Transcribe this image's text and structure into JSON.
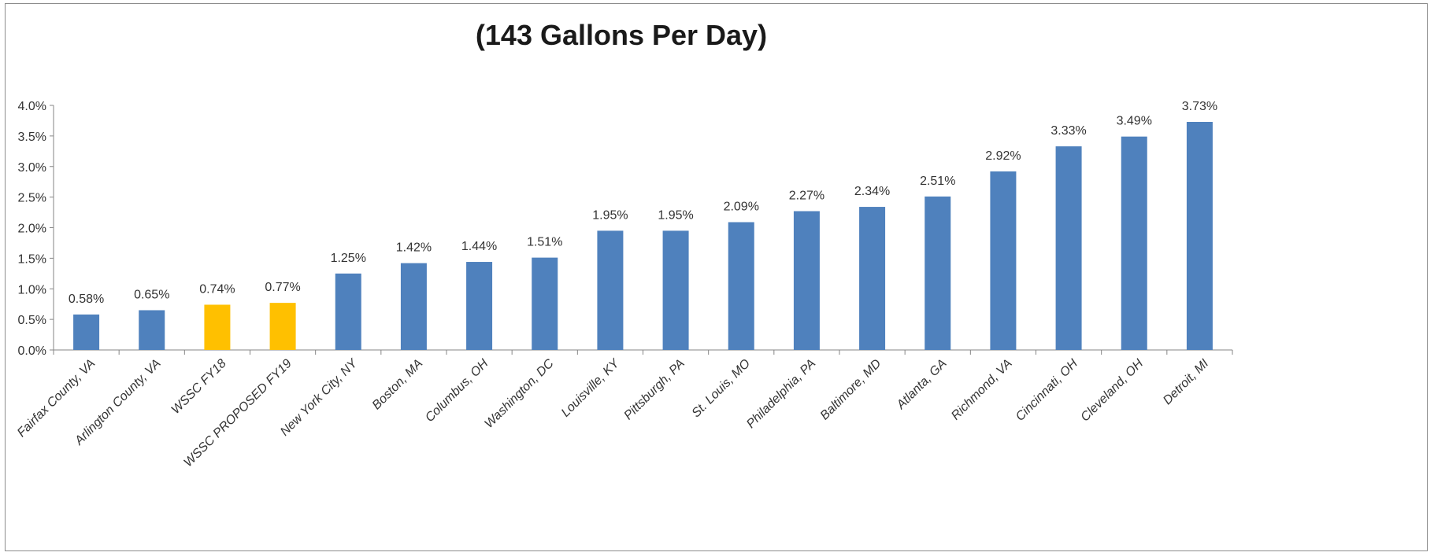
{
  "chart_data": {
    "type": "bar",
    "title": "(143 Gallons Per Day)",
    "xlabel": "",
    "ylabel": "",
    "ylim": [
      0,
      4.0
    ],
    "yticks": [
      "0.0%",
      "0.5%",
      "1.0%",
      "1.5%",
      "2.0%",
      "2.5%",
      "3.0%",
      "3.5%",
      "4.0%"
    ],
    "grid": false,
    "legend": "none",
    "categories": [
      "Fairfax County, VA",
      "Arlington County, VA",
      "WSSC FY18",
      "WSSC PROPOSED FY19",
      "New York City, NY",
      "Boston, MA",
      "Columbus, OH",
      "Washington, DC",
      "Louisville, KY",
      "Pittsburgh, PA",
      "St. Louis, MO",
      "Philadelphia, PA",
      "Baltimore, MD",
      "Atlanta, GA",
      "Richmond, VA",
      "Cincinnati, OH",
      "Cleveland, OH",
      "Detroit, MI"
    ],
    "values": [
      0.58,
      0.65,
      0.74,
      0.77,
      1.25,
      1.42,
      1.44,
      1.51,
      1.95,
      1.95,
      2.09,
      2.27,
      2.34,
      2.51,
      2.92,
      3.33,
      3.49,
      3.73
    ],
    "value_labels": [
      "0.58%",
      "0.65%",
      "0.74%",
      "0.77%",
      "1.25%",
      "1.42%",
      "1.44%",
      "1.51%",
      "1.95%",
      "1.95%",
      "2.09%",
      "2.27%",
      "2.34%",
      "2.51%",
      "2.92%",
      "3.33%",
      "3.49%",
      "3.73%"
    ],
    "highlighted": [
      false,
      false,
      true,
      true,
      false,
      false,
      false,
      false,
      false,
      false,
      false,
      false,
      false,
      false,
      false,
      false,
      false,
      false
    ],
    "colors": {
      "bar": "#4f81bd",
      "highlight": "#ffc000",
      "axis": "#868686"
    }
  }
}
